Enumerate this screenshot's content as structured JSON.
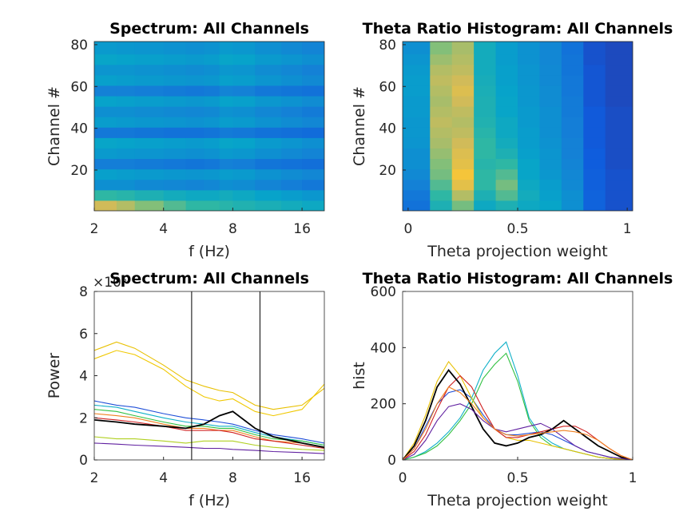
{
  "chart_data": [
    {
      "type": "heatmap",
      "title": "Spectrum: All Channels",
      "xlabel": "f (Hz)",
      "ylabel": "Channel #",
      "xscale": "log",
      "xlim": [
        2,
        20
      ],
      "xticks": [
        2,
        4,
        8,
        16
      ],
      "ylim": [
        0.5,
        81.5
      ],
      "yticks": [
        20,
        40,
        60,
        80
      ],
      "x": [
        2,
        2.5,
        3,
        4,
        5,
        6,
        7,
        8,
        10,
        13,
        16,
        20
      ],
      "y": [
        0.5,
        5.5,
        10.5,
        15.5,
        20.5,
        25.5,
        30.5,
        35.5,
        40.5,
        45.5,
        50.5,
        55.5,
        60.5,
        65.5,
        70.5,
        75.5,
        81.5
      ],
      "colormap": [
        "#352a87",
        "#0f5cdd",
        "#1481d6",
        "#06a4ca",
        "#2eb7a4",
        "#87bf77",
        "#d1bb59",
        "#fec832",
        "#f9fb0e"
      ],
      "z": [
        [
          0.75,
          0.7,
          0.62,
          0.55,
          0.5,
          0.5,
          0.48,
          0.46,
          0.44,
          0.42,
          0.4
        ],
        [
          0.5,
          0.48,
          0.45,
          0.42,
          0.4,
          0.4,
          0.42,
          0.4,
          0.37,
          0.35,
          0.33
        ],
        [
          0.3,
          0.3,
          0.28,
          0.27,
          0.26,
          0.27,
          0.3,
          0.29,
          0.26,
          0.24,
          0.22
        ],
        [
          0.36,
          0.35,
          0.34,
          0.33,
          0.32,
          0.33,
          0.35,
          0.34,
          0.31,
          0.29,
          0.27
        ],
        [
          0.24,
          0.24,
          0.23,
          0.22,
          0.21,
          0.22,
          0.25,
          0.24,
          0.21,
          0.2,
          0.19
        ],
        [
          0.34,
          0.33,
          0.32,
          0.31,
          0.3,
          0.31,
          0.34,
          0.33,
          0.3,
          0.28,
          0.26
        ],
        [
          0.38,
          0.37,
          0.36,
          0.35,
          0.34,
          0.35,
          0.38,
          0.37,
          0.34,
          0.32,
          0.3
        ],
        [
          0.22,
          0.22,
          0.21,
          0.2,
          0.2,
          0.21,
          0.23,
          0.22,
          0.2,
          0.19,
          0.18
        ],
        [
          0.35,
          0.34,
          0.33,
          0.32,
          0.31,
          0.32,
          0.35,
          0.34,
          0.31,
          0.29,
          0.27
        ],
        [
          0.3,
          0.3,
          0.29,
          0.28,
          0.27,
          0.28,
          0.31,
          0.3,
          0.27,
          0.25,
          0.23
        ],
        [
          0.37,
          0.36,
          0.35,
          0.34,
          0.33,
          0.34,
          0.37,
          0.36,
          0.33,
          0.31,
          0.29
        ],
        [
          0.25,
          0.25,
          0.24,
          0.23,
          0.22,
          0.23,
          0.26,
          0.25,
          0.22,
          0.21,
          0.2
        ],
        [
          0.36,
          0.35,
          0.34,
          0.33,
          0.32,
          0.33,
          0.36,
          0.35,
          0.32,
          0.3,
          0.28
        ],
        [
          0.32,
          0.32,
          0.31,
          0.3,
          0.29,
          0.3,
          0.33,
          0.32,
          0.29,
          0.27,
          0.25
        ],
        [
          0.38,
          0.37,
          0.36,
          0.35,
          0.34,
          0.35,
          0.38,
          0.37,
          0.34,
          0.32,
          0.3
        ],
        [
          0.34,
          0.33,
          0.32,
          0.31,
          0.3,
          0.31,
          0.34,
          0.33,
          0.3,
          0.28,
          0.26
        ]
      ]
    },
    {
      "type": "heatmap",
      "title": "Theta Ratio Histogram: All Channels",
      "xlabel": "Theta projection weight",
      "ylabel": "Channel #",
      "xlim": [
        -0.025,
        1.025
      ],
      "xticks": [
        0,
        0.5,
        1
      ],
      "ylim": [
        0.5,
        81.5
      ],
      "yticks": [
        20,
        40,
        60,
        80
      ],
      "x": [
        -0.025,
        0.1,
        0.2,
        0.3,
        0.4,
        0.5,
        0.6,
        0.7,
        0.8,
        0.9,
        1.025
      ],
      "y": [
        0.5,
        5.5,
        10.5,
        15.5,
        20.5,
        25.5,
        30.5,
        35.5,
        40.5,
        45.5,
        50.5,
        55.5,
        60.5,
        65.5,
        70.5,
        75.5,
        81.5
      ],
      "colormap": [
        "#352a87",
        "#0f5cdd",
        "#1481d6",
        "#06a4ca",
        "#2eb7a4",
        "#87bf77",
        "#d1bb59",
        "#fec832",
        "#f9fb0e"
      ],
      "z": [
        [
          0.2,
          0.45,
          0.6,
          0.4,
          0.45,
          0.4,
          0.38,
          0.3,
          0.15,
          0.1
        ],
        [
          0.22,
          0.5,
          0.7,
          0.45,
          0.55,
          0.42,
          0.36,
          0.3,
          0.15,
          0.1
        ],
        [
          0.25,
          0.55,
          0.8,
          0.5,
          0.6,
          0.4,
          0.35,
          0.28,
          0.14,
          0.1
        ],
        [
          0.28,
          0.6,
          0.85,
          0.5,
          0.55,
          0.38,
          0.33,
          0.27,
          0.14,
          0.1
        ],
        [
          0.3,
          0.62,
          0.8,
          0.48,
          0.5,
          0.38,
          0.32,
          0.26,
          0.13,
          0.09
        ],
        [
          0.3,
          0.65,
          0.78,
          0.5,
          0.45,
          0.36,
          0.32,
          0.25,
          0.13,
          0.09
        ],
        [
          0.32,
          0.68,
          0.75,
          0.5,
          0.42,
          0.35,
          0.31,
          0.25,
          0.12,
          0.09
        ],
        [
          0.33,
          0.7,
          0.72,
          0.48,
          0.4,
          0.35,
          0.3,
          0.24,
          0.12,
          0.09
        ],
        [
          0.33,
          0.72,
          0.7,
          0.46,
          0.4,
          0.34,
          0.3,
          0.24,
          0.12,
          0.09
        ],
        [
          0.34,
          0.7,
          0.72,
          0.45,
          0.38,
          0.34,
          0.3,
          0.23,
          0.12,
          0.09
        ],
        [
          0.34,
          0.68,
          0.75,
          0.45,
          0.38,
          0.33,
          0.29,
          0.23,
          0.11,
          0.08
        ],
        [
          0.35,
          0.7,
          0.78,
          0.44,
          0.37,
          0.33,
          0.29,
          0.22,
          0.11,
          0.08
        ],
        [
          0.35,
          0.72,
          0.75,
          0.43,
          0.36,
          0.32,
          0.28,
          0.22,
          0.11,
          0.08
        ],
        [
          0.34,
          0.7,
          0.72,
          0.42,
          0.36,
          0.32,
          0.28,
          0.21,
          0.11,
          0.08
        ],
        [
          0.32,
          0.66,
          0.7,
          0.42,
          0.35,
          0.31,
          0.27,
          0.21,
          0.1,
          0.08
        ],
        [
          0.3,
          0.62,
          0.68,
          0.42,
          0.35,
          0.31,
          0.27,
          0.2,
          0.1,
          0.08
        ]
      ]
    },
    {
      "type": "line",
      "title": "Spectrum: All Channels",
      "xlabel": "f (Hz)",
      "ylabel": "Power",
      "y_exponent": "×10⁵",
      "xscale": "log",
      "xlim": [
        2,
        20
      ],
      "xticks": [
        2,
        4,
        8,
        16
      ],
      "ylim": [
        0,
        8
      ],
      "yticks": [
        0,
        2,
        4,
        6,
        8
      ],
      "vlines": [
        5.3,
        10.5
      ],
      "x": [
        2,
        2.5,
        3,
        4,
        5,
        6,
        7,
        8,
        10,
        12,
        16,
        20
      ],
      "series": [
        {
          "color": "#e8c000",
          "values": [
            5.2,
            5.6,
            5.3,
            4.5,
            3.8,
            3.5,
            3.3,
            3.2,
            2.6,
            2.4,
            2.6,
            3.4
          ]
        },
        {
          "color": "#f0c800",
          "values": [
            4.8,
            5.2,
            5.0,
            4.3,
            3.5,
            3.0,
            2.8,
            2.9,
            2.3,
            2.1,
            2.4,
            3.6
          ]
        },
        {
          "color": "#1f4fd8",
          "values": [
            2.8,
            2.6,
            2.5,
            2.2,
            2.0,
            1.9,
            1.8,
            1.7,
            1.4,
            1.2,
            1.0,
            0.8
          ]
        },
        {
          "color": "#10b0c8",
          "values": [
            2.6,
            2.5,
            2.3,
            2.0,
            1.8,
            1.7,
            1.6,
            1.6,
            1.3,
            1.1,
            0.9,
            0.7
          ]
        },
        {
          "color": "#30c040",
          "values": [
            2.4,
            2.3,
            2.1,
            1.8,
            1.6,
            1.6,
            1.5,
            1.5,
            1.2,
            1.0,
            0.9,
            0.7
          ]
        },
        {
          "color": "#f08020",
          "values": [
            2.2,
            2.1,
            2.0,
            1.7,
            1.5,
            1.5,
            1.4,
            1.4,
            1.1,
            0.9,
            0.8,
            0.6
          ]
        },
        {
          "color": "#d02020",
          "values": [
            2.0,
            1.9,
            1.8,
            1.6,
            1.4,
            1.4,
            1.4,
            1.3,
            1.0,
            0.9,
            0.7,
            0.55
          ]
        },
        {
          "color": "#000000",
          "values": [
            1.9,
            1.8,
            1.7,
            1.6,
            1.5,
            1.7,
            2.1,
            2.3,
            1.5,
            1.1,
            0.8,
            0.6
          ]
        },
        {
          "color": "#b0d020",
          "values": [
            1.1,
            1.0,
            1.0,
            0.9,
            0.8,
            0.9,
            0.9,
            0.9,
            0.7,
            0.6,
            0.5,
            0.45
          ]
        },
        {
          "color": "#6020a0",
          "values": [
            0.8,
            0.75,
            0.7,
            0.65,
            0.6,
            0.55,
            0.55,
            0.5,
            0.45,
            0.4,
            0.35,
            0.3
          ]
        }
      ]
    },
    {
      "type": "line",
      "title": "Theta Ratio Histogram: All Channels",
      "xlabel": "Theta projection weight",
      "ylabel": "hist",
      "xlim": [
        0,
        1
      ],
      "xticks": [
        0,
        0.5,
        1
      ],
      "ylim": [
        0,
        600
      ],
      "yticks": [
        0,
        200,
        400,
        600
      ],
      "x": [
        0,
        0.05,
        0.1,
        0.15,
        0.2,
        0.25,
        0.3,
        0.35,
        0.4,
        0.45,
        0.5,
        0.55,
        0.6,
        0.65,
        0.7,
        0.75,
        0.8,
        0.85,
        0.9,
        0.95,
        1
      ],
      "series": [
        {
          "color": "#1f4fd8",
          "values": [
            0,
            40,
            120,
            200,
            240,
            250,
            220,
            160,
            110,
            90,
            90,
            95,
            100,
            90,
            70,
            50,
            30,
            20,
            10,
            5,
            0
          ]
        },
        {
          "color": "#10b0c8",
          "values": [
            0,
            10,
            30,
            60,
            100,
            150,
            220,
            320,
            380,
            420,
            300,
            150,
            90,
            60,
            40,
            30,
            20,
            10,
            5,
            2,
            0
          ]
        },
        {
          "color": "#30c040",
          "values": [
            0,
            10,
            25,
            50,
            90,
            140,
            200,
            290,
            340,
            380,
            280,
            140,
            80,
            50,
            40,
            30,
            20,
            10,
            5,
            2,
            0
          ]
        },
        {
          "color": "#e8c000",
          "values": [
            0,
            60,
            160,
            280,
            350,
            300,
            220,
            150,
            110,
            80,
            70,
            70,
            60,
            50,
            40,
            30,
            20,
            10,
            5,
            2,
            0
          ]
        },
        {
          "color": "#d02020",
          "values": [
            0,
            30,
            90,
            180,
            260,
            300,
            260,
            180,
            110,
            80,
            80,
            90,
            100,
            110,
            120,
            120,
            100,
            70,
            40,
            15,
            0
          ]
        },
        {
          "color": "#000000",
          "values": [
            0,
            50,
            140,
            260,
            320,
            270,
            190,
            110,
            60,
            50,
            60,
            80,
            90,
            110,
            140,
            110,
            80,
            50,
            30,
            10,
            0
          ]
        },
        {
          "color": "#6020a0",
          "values": [
            0,
            20,
            70,
            140,
            190,
            200,
            180,
            140,
            110,
            100,
            110,
            120,
            130,
            110,
            80,
            50,
            30,
            20,
            10,
            5,
            0
          ]
        },
        {
          "color": "#f08020",
          "values": [
            0,
            40,
            110,
            200,
            260,
            240,
            200,
            150,
            110,
            90,
            85,
            90,
            95,
            100,
            105,
            100,
            90,
            70,
            40,
            15,
            0
          ]
        }
      ]
    }
  ]
}
